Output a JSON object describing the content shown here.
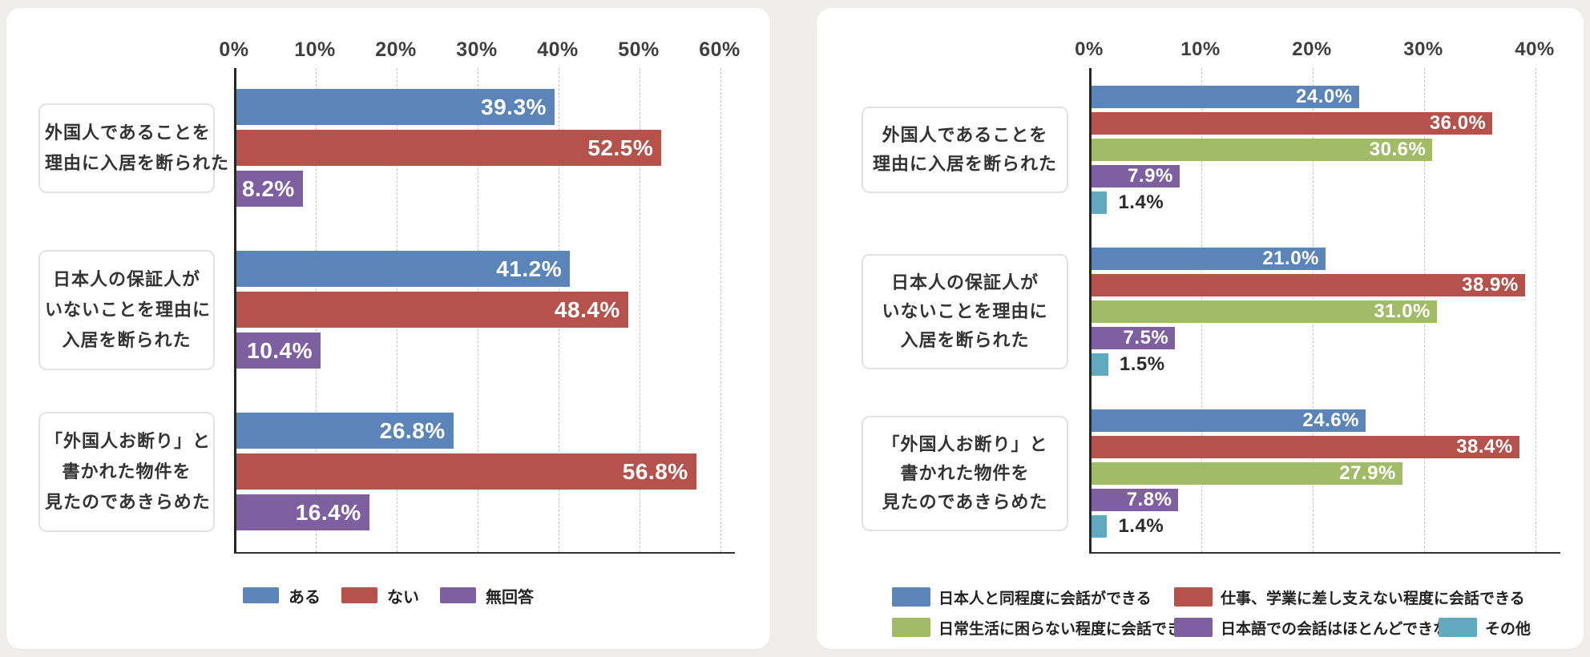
{
  "page": {
    "background": "#efeeec",
    "card_color": "#ffffff"
  },
  "chart_data": [
    {
      "type": "bar",
      "orientation": "horizontal",
      "panel": "left",
      "title": "",
      "categories_lines": [
        [
          "外国人であることを",
          "理由に入居を断られた"
        ],
        [
          "日本人の保証人が",
          "いないことを理由に",
          "入居を断られた"
        ],
        [
          "「外国人お断り」と",
          "書かれた物件を",
          "見たのであきらめた"
        ]
      ],
      "series": [
        {
          "name": "ある",
          "color": "#5b84b8",
          "values": [
            39.3,
            41.2,
            26.8
          ]
        },
        {
          "name": "ない",
          "color": "#b5524c",
          "values": [
            52.5,
            48.4,
            56.8
          ]
        },
        {
          "name": "無回答",
          "color": "#7e5fa0",
          "values": [
            8.2,
            10.4,
            16.4
          ]
        }
      ],
      "data_labels": [
        [
          "39.3%",
          "41.2%",
          "26.8%"
        ],
        [
          "52.5%",
          "48.4%",
          "56.8%"
        ],
        [
          "8.2%",
          "10.4%",
          "16.4%"
        ]
      ],
      "value_suffix": "%",
      "xlim": [
        0,
        60
      ],
      "x_ticks": [
        "0%",
        "10%",
        "20%",
        "30%",
        "40%",
        "50%",
        "60%"
      ],
      "grid": "vertical-dashed",
      "legend_position": "bottom"
    },
    {
      "type": "bar",
      "orientation": "horizontal",
      "panel": "right",
      "title": "",
      "categories_lines": [
        [
          "外国人であることを",
          "理由に入居を断られた"
        ],
        [
          "日本人の保証人が",
          "いないことを理由に",
          "入居を断られた"
        ],
        [
          "「外国人お断り」と",
          "書かれた物件を",
          "見たのであきらめた"
        ]
      ],
      "series": [
        {
          "name": "日本人と同程度に会話ができる",
          "color": "#5b84b8",
          "values": [
            24.0,
            21.0,
            24.6
          ]
        },
        {
          "name": "仕事、学業に差し支えない程度に会話できる",
          "color": "#b5524c",
          "values": [
            36.0,
            38.9,
            38.4
          ]
        },
        {
          "name": "日常生活に困らない程度に会話できる",
          "color": "#a1bb67",
          "values": [
            30.6,
            31.0,
            27.9
          ]
        },
        {
          "name": "日本語での会話はほとんどできない",
          "color": "#7e5fa0",
          "values": [
            7.9,
            7.5,
            7.8
          ]
        },
        {
          "name": "その他",
          "color": "#60a9bf",
          "values": [
            1.4,
            1.5,
            1.4
          ]
        }
      ],
      "data_labels": [
        [
          "24.0%",
          "21.0%",
          "24.6%"
        ],
        [
          "36.0%",
          "38.9%",
          "38.4%"
        ],
        [
          "30.6%",
          "31.0%",
          "27.9%"
        ],
        [
          "7.9%",
          "7.5%",
          "7.8%"
        ],
        [
          "1.4%",
          "1.5%",
          "1.4%"
        ]
      ],
      "value_suffix": "%",
      "xlim": [
        0,
        40
      ],
      "x_ticks": [
        "0%",
        "10%",
        "20%",
        "30%",
        "40%"
      ],
      "grid": "vertical-dashed",
      "legend_position": "bottom"
    }
  ]
}
